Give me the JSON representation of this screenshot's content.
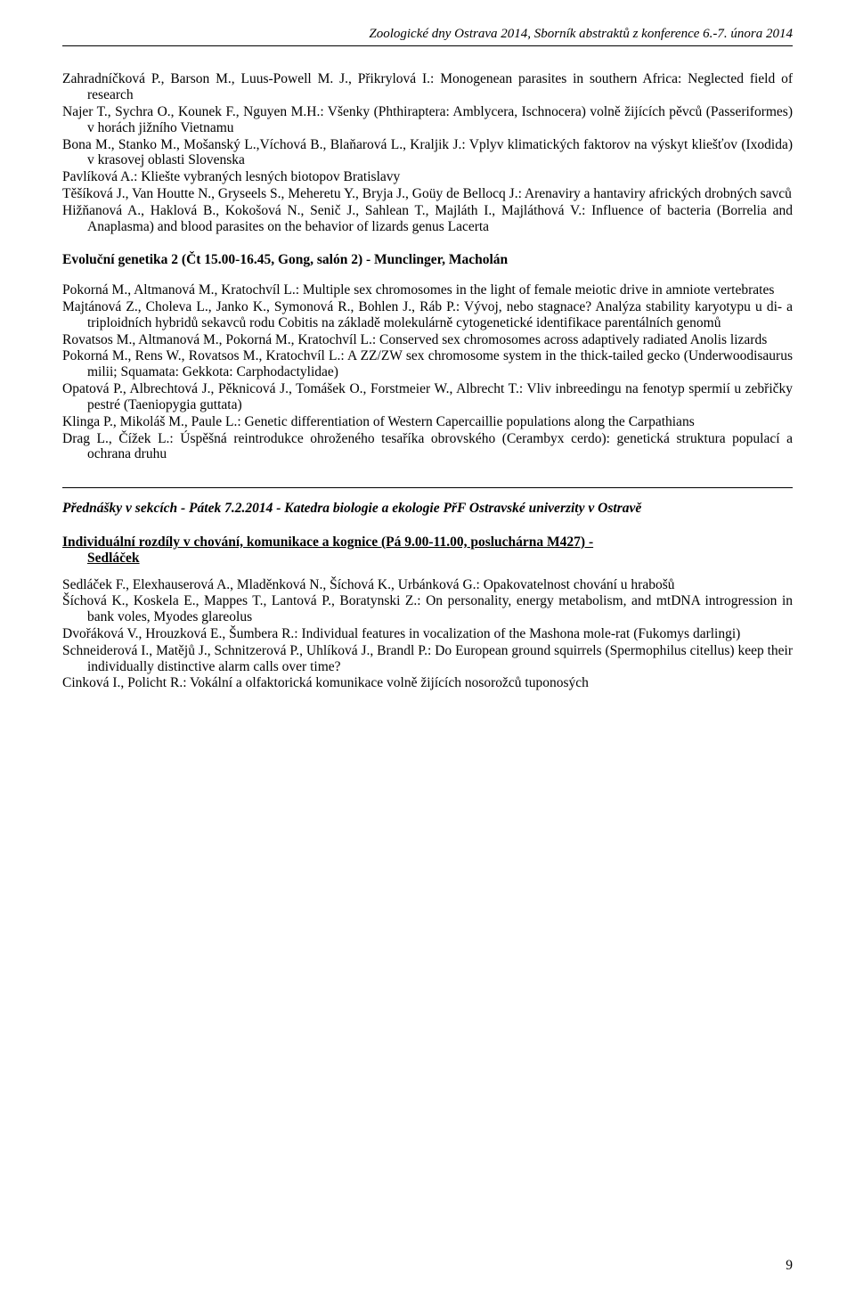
{
  "header": "Zoologické dny Ostrava 2014, Sborník abstraktů z konference 6.-7. února 2014",
  "block1": {
    "e0": "Zahradníčková P., Barson M., Luus-Powell M. J., Přikrylová I.: Monogenean parasites in southern Africa: Neglected field of research",
    "e1": "Najer T., Sychra O., Kounek F., Nguyen M.H.: Všenky (Phthiraptera: Amblycera, Ischnocera) volně žijících pěvců (Passeriformes) v horách jižního Vietnamu",
    "e2": "Bona M., Stanko M., Mošanský L.,Víchová B., Blaňarová L., Kraljik J.: Vplyv klimatických faktorov na výskyt kliešťov (Ixodida) v krasovej oblasti Slovenska",
    "e3": "Pavlíková A.: Kliešte vybraných lesných biotopov Bratislavy",
    "e4": "Těšíková J., Van Houtte N., Gryseels S., Meheretu Y., Bryja J.,  Goüy de Bellocq J.: Arenaviry a hantaviry afrických drobných savců",
    "e5": "Hižňanová A., Haklová B., Kokošová N., Senič J., Sahlean T., Majláth I., Majláthová V.: Influence of bacteria (Borrelia and Anaplasma) and blood parasites on the behavior of lizards genus Lacerta"
  },
  "section2_title": "Evoluční genetika 2 (Čt 15.00-16.45, Gong, salón 2) - Munclinger, Macholán",
  "block2": {
    "e0": "Pokorná M., Altmanová M., Kratochvíl L.: Multiple sex chromosomes in the light of female meiotic drive in amniote vertebrates",
    "e1": "Majtánová Z., Choleva L., Janko K., Symonová R., Bohlen J., Ráb P.: Vývoj, nebo stagnace? Analýza stability karyotypu u di- a triploidních hybridů sekavců rodu Cobitis na základě molekulárně cytogenetické identifikace parentálních genomů",
    "e2": "Rovatsos M., Altmanová M., Pokorná M., Kratochvíl L.: Conserved sex chromosomes across adaptively radiated Anolis lizards",
    "e3": "Pokorná M., Rens W., Rovatsos M.,  Kratochvíl L.: A ZZ/ZW sex chromosome system in the thick-tailed gecko (Underwoodisaurus milii;  Squamata: Gekkota: Carphodactylidae)",
    "e4": "Opatová P., Albrechtová J., Pěknicová J., Tomášek O., Forstmeier W., Albrecht T.: Vliv inbreedingu na fenotyp spermií u zebřičky pestré (Taeniopygia guttata)",
    "e5": "Klinga P., Mikoláš M., Paule L.: Genetic differentiation of Western Capercaillie populations along the Carpathians",
    "e6": "Drag L., Čížek L.: Úspěšná reintrodukce ohroženého tesaříka obrovského (Cerambyx cerdo): genetická struktura populací a ochrana druhu"
  },
  "section3_title": "Přednášky v sekcích - Pátek 7.2.2014 - Katedra biologie a ekologie PřF Ostravské univerzity v Ostravě",
  "subsection_title_line1": "Individuální rozdíly v chování, komunikace a kognice (Pá 9.00-11.00, posluchárna M427) -",
  "subsection_title_line2": "Sedláček",
  "block3": {
    "e0": "Sedláček F., Elexhauserová A., Mladěnková N., Šíchová K., Urbánková G.: Opakovatelnost chování u hrabošů",
    "e1": "Šíchová K., Koskela E., Mappes T., Lantová P., Boratynski Z.: On personality, energy metabolism, and mtDNA introgression in bank voles, Myodes glareolus",
    "e2": "Dvořáková V., Hrouzková E., Šumbera R.: Individual features in vocalization of the Mashona mole-rat (Fukomys darlingi)",
    "e3": "Schneiderová I., Matějů J., Schnitzerová P., Uhlíková J., Brandl P.: Do European ground squirrels (Spermophilus citellus) keep their individually distinctive alarm calls over time?",
    "e4": "Cinková I., Policht R.: Vokální a olfaktorická komunikace volně žijících nosorožců tuponosých"
  },
  "page_number": "9"
}
